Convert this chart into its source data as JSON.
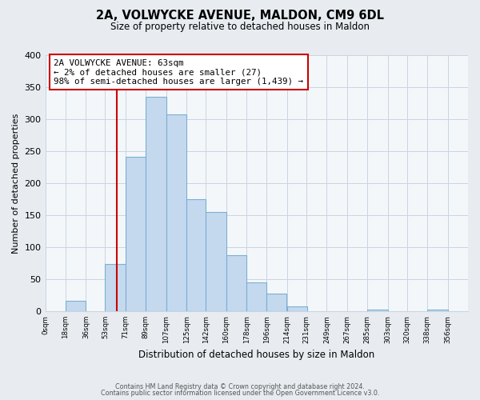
{
  "title": "2A, VOLWYCKE AVENUE, MALDON, CM9 6DL",
  "subtitle": "Size of property relative to detached houses in Maldon",
  "xlabel": "Distribution of detached houses by size in Maldon",
  "ylabel": "Number of detached properties",
  "bar_left_edges": [
    0,
    18,
    36,
    53,
    71,
    89,
    107,
    125,
    142,
    160,
    178,
    196,
    214,
    231,
    249,
    267,
    285,
    303,
    320,
    338
  ],
  "bar_heights": [
    0,
    16,
    0,
    74,
    241,
    335,
    307,
    175,
    155,
    88,
    45,
    28,
    8,
    0,
    0,
    0,
    2,
    0,
    0,
    2
  ],
  "bar_widths": [
    18,
    18,
    17,
    18,
    18,
    18,
    18,
    17,
    18,
    18,
    18,
    17,
    18,
    18,
    18,
    18,
    18,
    17,
    18,
    18
  ],
  "bar_color": "#c5d9ee",
  "bar_edge_color": "#7aafd4",
  "tick_labels": [
    "0sqm",
    "18sqm",
    "36sqm",
    "53sqm",
    "71sqm",
    "89sqm",
    "107sqm",
    "125sqm",
    "142sqm",
    "160sqm",
    "178sqm",
    "196sqm",
    "214sqm",
    "231sqm",
    "249sqm",
    "267sqm",
    "285sqm",
    "303sqm",
    "320sqm",
    "338sqm",
    "356sqm"
  ],
  "tick_positions": [
    0,
    18,
    36,
    53,
    71,
    89,
    107,
    125,
    142,
    160,
    178,
    196,
    214,
    231,
    249,
    267,
    285,
    303,
    320,
    338,
    356
  ],
  "ylim": [
    0,
    400
  ],
  "xlim": [
    0,
    374
  ],
  "yticks": [
    0,
    50,
    100,
    150,
    200,
    250,
    300,
    350,
    400
  ],
  "property_line_x": 63,
  "property_line_color": "#cc0000",
  "annotation_title": "2A VOLWYCKE AVENUE: 63sqm",
  "annotation_line1": "← 2% of detached houses are smaller (27)",
  "annotation_line2": "98% of semi-detached houses are larger (1,439) →",
  "footer_line1": "Contains HM Land Registry data © Crown copyright and database right 2024.",
  "footer_line2": "Contains public sector information licensed under the Open Government Licence v3.0.",
  "background_color": "#e8ecf0",
  "plot_bg_color": "#f4f7fa",
  "grid_color": "#c8d4e0"
}
